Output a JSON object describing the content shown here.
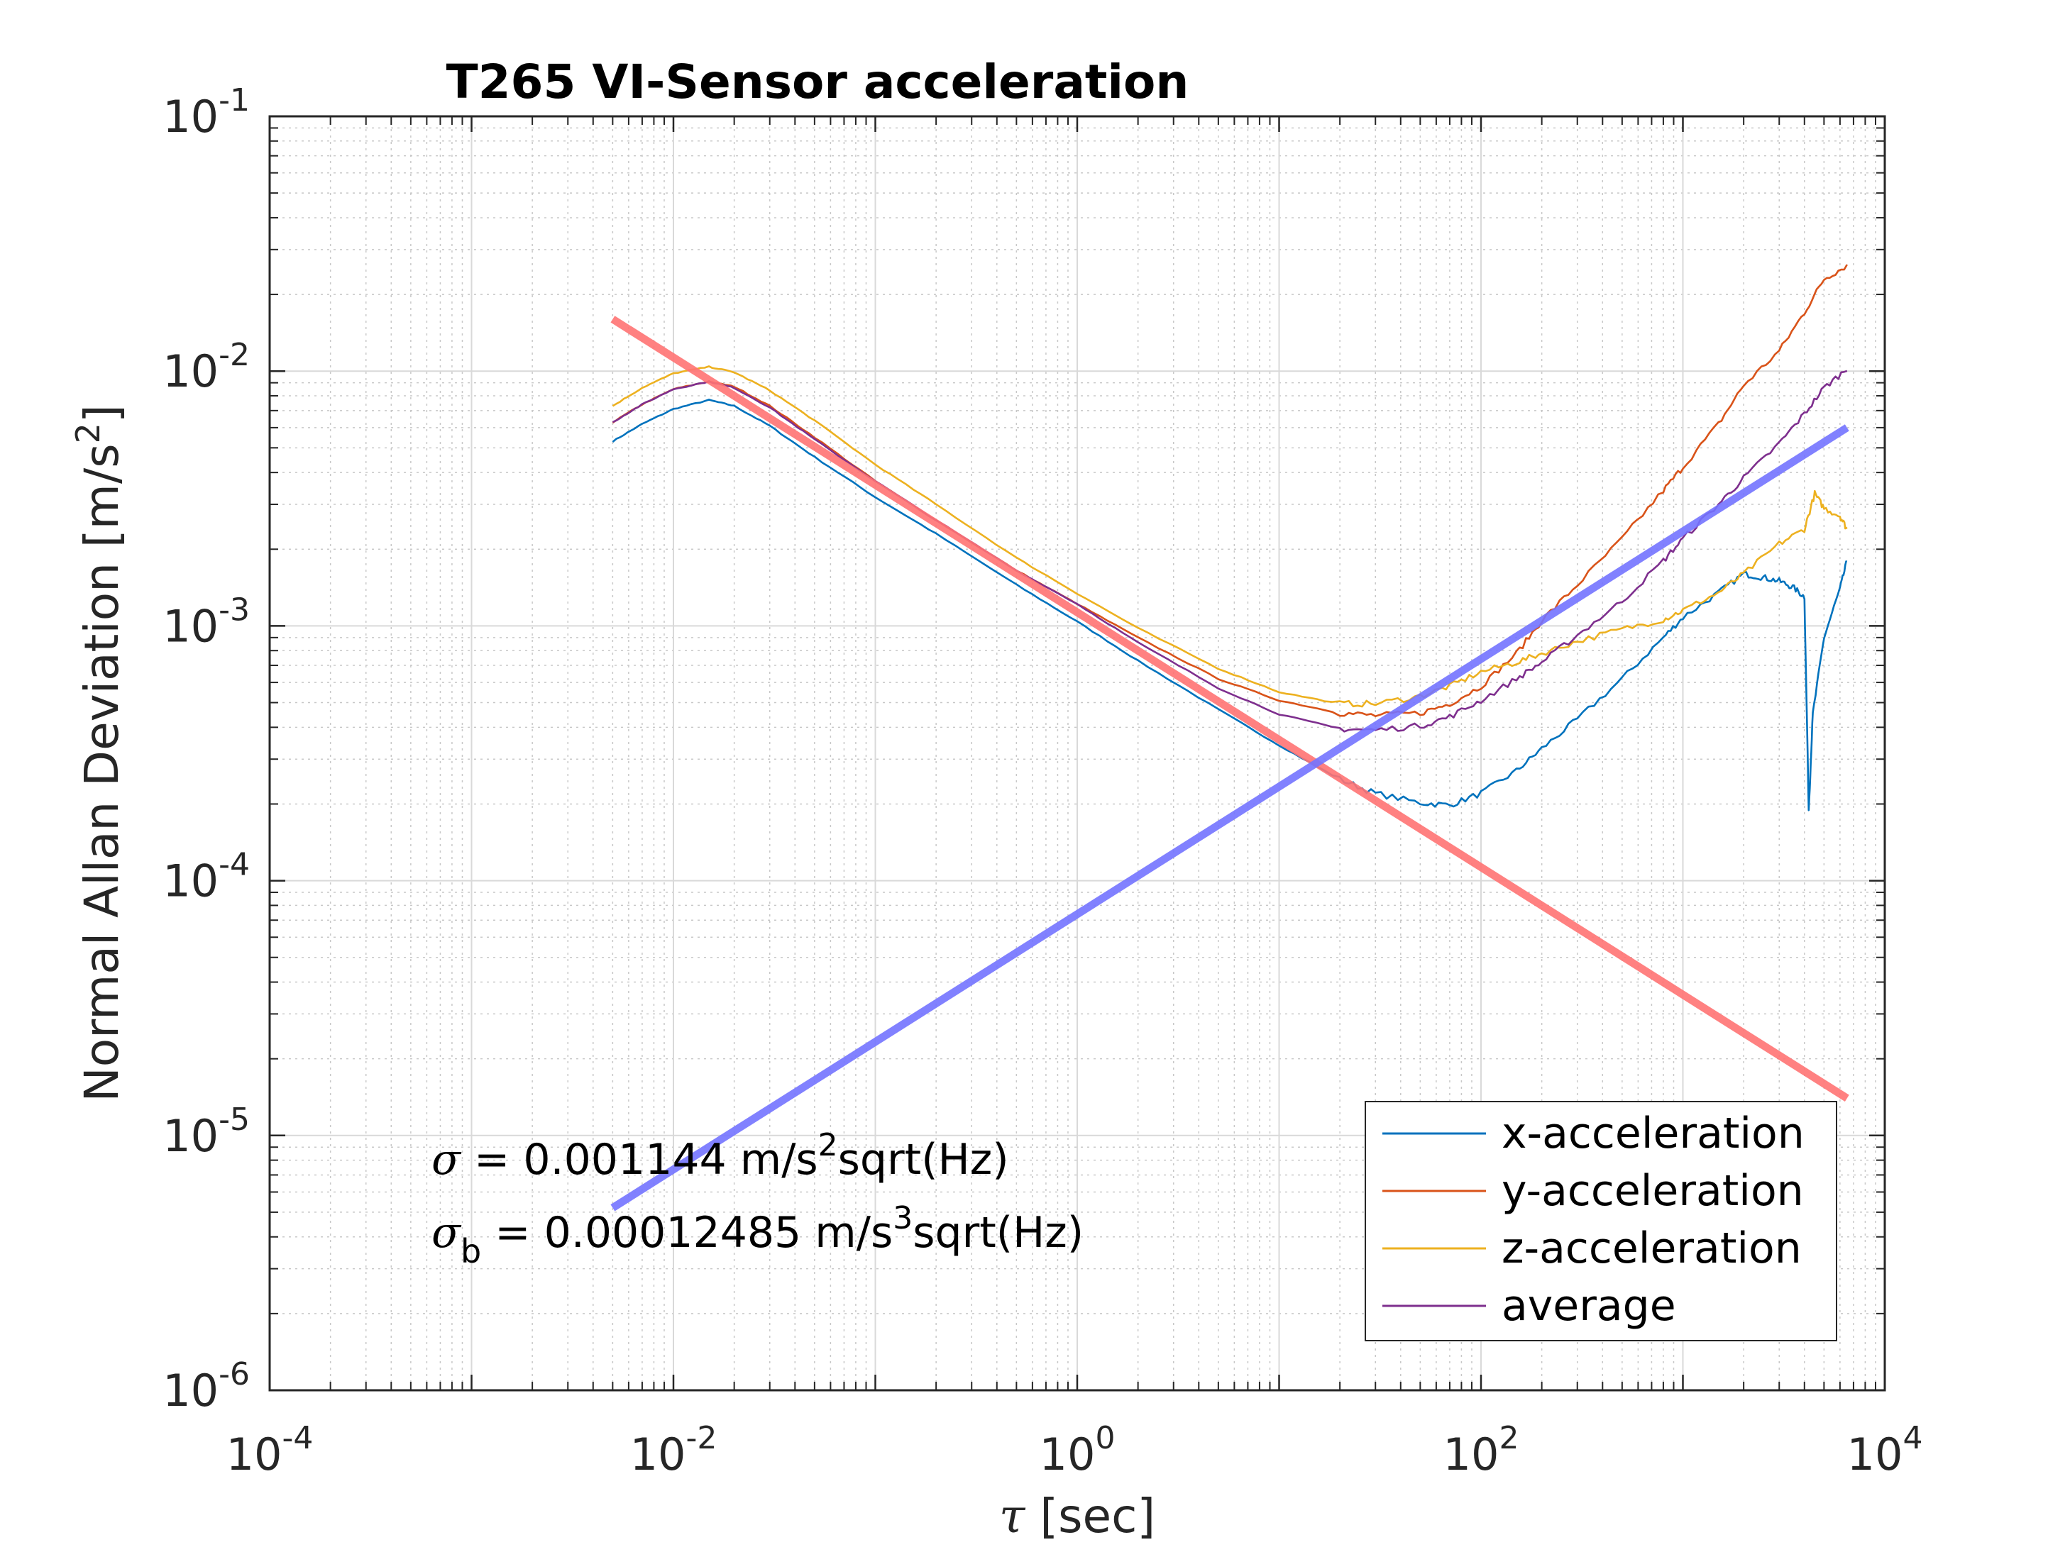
{
  "chart_data": {
    "type": "line",
    "title": "T265 VI-Sensor acceleration",
    "xlabel_symbol": "τ",
    "xlabel_unit": "[sec]",
    "ylabel": "Normal Allan Deviation [m/s",
    "ylabel_sup": "2",
    "ylabel_end": "]",
    "x_scale": "log",
    "y_scale": "log",
    "xlim": [
      0.0001,
      10000
    ],
    "ylim": [
      1e-06,
      0.1
    ],
    "grid": true,
    "minor_grid": true,
    "legend_position": "bottom-right",
    "x_ticks": [
      {
        "value": 0.0001,
        "base": "10",
        "exp": "-4"
      },
      {
        "value": 0.01,
        "base": "10",
        "exp": "-2"
      },
      {
        "value": 1,
        "base": "10",
        "exp": "0"
      },
      {
        "value": 100,
        "base": "10",
        "exp": "2"
      },
      {
        "value": 10000,
        "base": "10",
        "exp": "4"
      }
    ],
    "y_ticks": [
      {
        "value": 0.1,
        "base": "10",
        "exp": "-1"
      },
      {
        "value": 0.01,
        "base": "10",
        "exp": "-2"
      },
      {
        "value": 0.001,
        "base": "10",
        "exp": "-3"
      },
      {
        "value": 0.0001,
        "base": "10",
        "exp": "-4"
      },
      {
        "value": 1e-05,
        "base": "10",
        "exp": "-5"
      },
      {
        "value": 1e-06,
        "base": "10",
        "exp": "-6"
      }
    ],
    "series": [
      {
        "name": "x-acceleration",
        "color": "#0072BD",
        "points": [
          [
            0.005,
            0.0053
          ],
          [
            0.007,
            0.0062
          ],
          [
            0.01,
            0.0071
          ],
          [
            0.015,
            0.0077
          ],
          [
            0.02,
            0.0073
          ],
          [
            0.03,
            0.0061
          ],
          [
            0.05,
            0.0046
          ],
          [
            0.1,
            0.0032
          ],
          [
            0.2,
            0.0023
          ],
          [
            0.5,
            0.00145
          ],
          [
            1,
            0.00104
          ],
          [
            2,
            0.00073
          ],
          [
            5,
            0.00047
          ],
          [
            10,
            0.00034
          ],
          [
            20,
            0.00025
          ],
          [
            30,
            0.00022
          ],
          [
            50,
            0.000202
          ],
          [
            70,
            0.000198
          ],
          [
            100,
            0.00022
          ],
          [
            150,
            0.00027
          ],
          [
            200,
            0.00033
          ],
          [
            300,
            0.00043
          ],
          [
            500,
            0.00062
          ],
          [
            800,
            0.0009
          ],
          [
            1000,
            0.00108
          ],
          [
            1500,
            0.00135
          ],
          [
            2000,
            0.0016
          ],
          [
            2500,
            0.00155
          ],
          [
            3000,
            0.0015
          ],
          [
            3500,
            0.00142
          ],
          [
            4000,
            0.0013
          ],
          [
            4200,
            0.00019
          ],
          [
            4400,
            0.00045
          ],
          [
            5000,
            0.0009
          ],
          [
            6000,
            0.0014
          ],
          [
            6500,
            0.0018
          ]
        ]
      },
      {
        "name": "y-acceleration",
        "color": "#D95319",
        "points": [
          [
            0.005,
            0.0063
          ],
          [
            0.007,
            0.0074
          ],
          [
            0.01,
            0.0085
          ],
          [
            0.015,
            0.0091
          ],
          [
            0.02,
            0.0087
          ],
          [
            0.03,
            0.0073
          ],
          [
            0.05,
            0.0055
          ],
          [
            0.1,
            0.0037
          ],
          [
            0.2,
            0.0026
          ],
          [
            0.5,
            0.00165
          ],
          [
            1,
            0.00122
          ],
          [
            2,
            0.0009
          ],
          [
            5,
            0.00062
          ],
          [
            10,
            0.00051
          ],
          [
            20,
            0.000455
          ],
          [
            30,
            0.000445
          ],
          [
            50,
            0.000455
          ],
          [
            70,
            0.000495
          ],
          [
            100,
            0.00058
          ],
          [
            150,
            0.00078
          ],
          [
            200,
            0.00105
          ],
          [
            300,
            0.00145
          ],
          [
            500,
            0.0022
          ],
          [
            800,
            0.0034
          ],
          [
            1000,
            0.0042
          ],
          [
            1500,
            0.0062
          ],
          [
            2000,
            0.0088
          ],
          [
            3000,
            0.012
          ],
          [
            4000,
            0.017
          ],
          [
            5000,
            0.023
          ],
          [
            6500,
            0.026
          ]
        ]
      },
      {
        "name": "z-acceleration",
        "color": "#EDB120",
        "points": [
          [
            0.005,
            0.0073
          ],
          [
            0.007,
            0.0086
          ],
          [
            0.01,
            0.0098
          ],
          [
            0.015,
            0.0104
          ],
          [
            0.02,
            0.0099
          ],
          [
            0.03,
            0.0084
          ],
          [
            0.05,
            0.0064
          ],
          [
            0.1,
            0.0043
          ],
          [
            0.2,
            0.003
          ],
          [
            0.5,
            0.00185
          ],
          [
            1,
            0.00134
          ],
          [
            2,
            0.00098
          ],
          [
            5,
            0.00068
          ],
          [
            10,
            0.00055
          ],
          [
            20,
            0.000495
          ],
          [
            30,
            0.000495
          ],
          [
            50,
            0.00053
          ],
          [
            70,
            0.00058
          ],
          [
            100,
            0.00066
          ],
          [
            150,
            0.00072
          ],
          [
            200,
            0.00078
          ],
          [
            300,
            0.00087
          ],
          [
            500,
            0.00097
          ],
          [
            800,
            0.00106
          ],
          [
            1000,
            0.00115
          ],
          [
            1500,
            0.00135
          ],
          [
            2000,
            0.0016
          ],
          [
            3000,
            0.0021
          ],
          [
            4000,
            0.0024
          ],
          [
            4500,
            0.0033
          ],
          [
            5000,
            0.0029
          ],
          [
            6000,
            0.0027
          ],
          [
            6500,
            0.0024
          ]
        ]
      },
      {
        "name": "average",
        "color": "#7E2F8E",
        "points": [
          [
            0.005,
            0.0063
          ],
          [
            0.007,
            0.0074
          ],
          [
            0.01,
            0.0085
          ],
          [
            0.015,
            0.0091
          ],
          [
            0.02,
            0.0086
          ],
          [
            0.03,
            0.0072
          ],
          [
            0.05,
            0.0054
          ],
          [
            0.1,
            0.0037
          ],
          [
            0.2,
            0.0026
          ],
          [
            0.5,
            0.00165
          ],
          [
            1,
            0.00122
          ],
          [
            2,
            0.00086
          ],
          [
            5,
            0.00057
          ],
          [
            10,
            0.00045
          ],
          [
            20,
            0.000395
          ],
          [
            30,
            0.00039
          ],
          [
            50,
            0.000405
          ],
          [
            70,
            0.00044
          ],
          [
            100,
            0.00051
          ],
          [
            150,
            0.00062
          ],
          [
            200,
            0.00072
          ],
          [
            300,
            0.00092
          ],
          [
            500,
            0.00125
          ],
          [
            800,
            0.0018
          ],
          [
            1000,
            0.0022
          ],
          [
            1500,
            0.003
          ],
          [
            2000,
            0.0038
          ],
          [
            3000,
            0.0052
          ],
          [
            4000,
            0.0068
          ],
          [
            5000,
            0.0086
          ],
          [
            6500,
            0.0102
          ]
        ]
      }
    ],
    "fit_lines": [
      {
        "name": "white-noise-fit",
        "color": "#FF7373",
        "points": [
          [
            0.005,
            0.016
          ],
          [
            6500,
            1.4e-05
          ]
        ]
      },
      {
        "name": "random-walk-fit",
        "color": "#7373FF",
        "points": [
          [
            0.005,
            5.2e-06
          ],
          [
            6500,
            0.006
          ]
        ]
      }
    ],
    "annotations": {
      "sigma_symbol": "σ",
      "sigma_text": " = 0.001144 m/s",
      "sigma_sup": "2",
      "sigma_end": "sqrt(Hz)",
      "sigmab_symbol": "σ",
      "sigmab_sub": "b",
      "sigmab_text": " = 0.00012485 m/s",
      "sigmab_sup": "3",
      "sigmab_end": "sqrt(Hz)"
    }
  }
}
